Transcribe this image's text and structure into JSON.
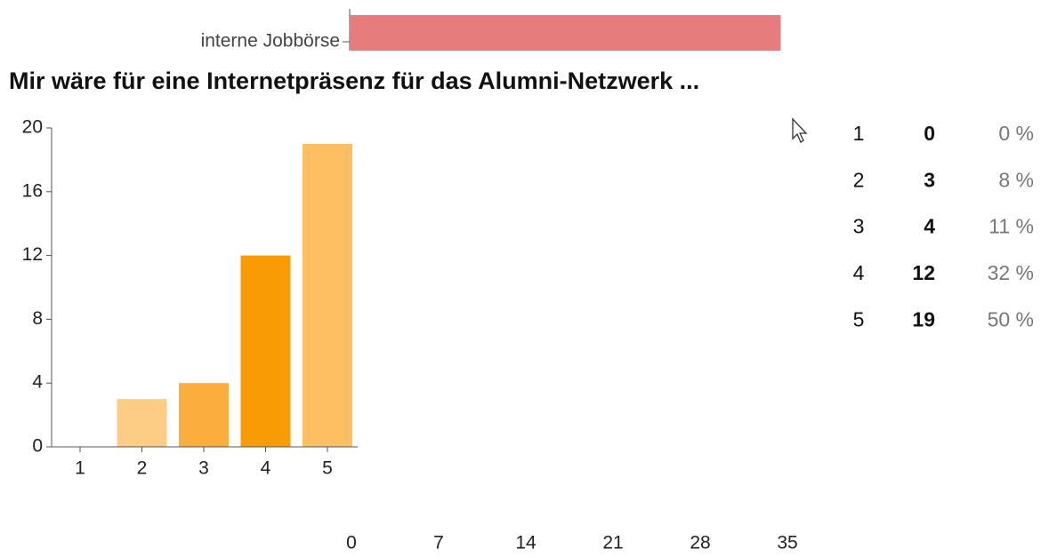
{
  "chart_data": [
    {
      "type": "hbar",
      "categories": [
        "interne Jobbörse"
      ],
      "values": [
        34.6
      ],
      "color": "#e67c7c",
      "xlim": [
        0,
        35
      ],
      "xticks": [
        0,
        7,
        14,
        21,
        28,
        35
      ]
    },
    {
      "type": "bar",
      "title": "Mir wäre für eine Internetpräsenz für das Alumni-Netzwerk ...",
      "categories": [
        "1",
        "2",
        "3",
        "4",
        "5"
      ],
      "values": [
        0,
        3,
        4,
        12,
        19
      ],
      "colors": [
        "#fdd08c",
        "#fdcc85",
        "#fbae3e",
        "#f99b05",
        "#fdbf62"
      ],
      "ylim": [
        0,
        20
      ],
      "yticks": [
        0,
        4,
        8,
        12,
        16,
        20
      ],
      "percent_labels": [
        "0 %",
        "8 %",
        "11 %",
        "32 %",
        "50 %"
      ]
    }
  ]
}
